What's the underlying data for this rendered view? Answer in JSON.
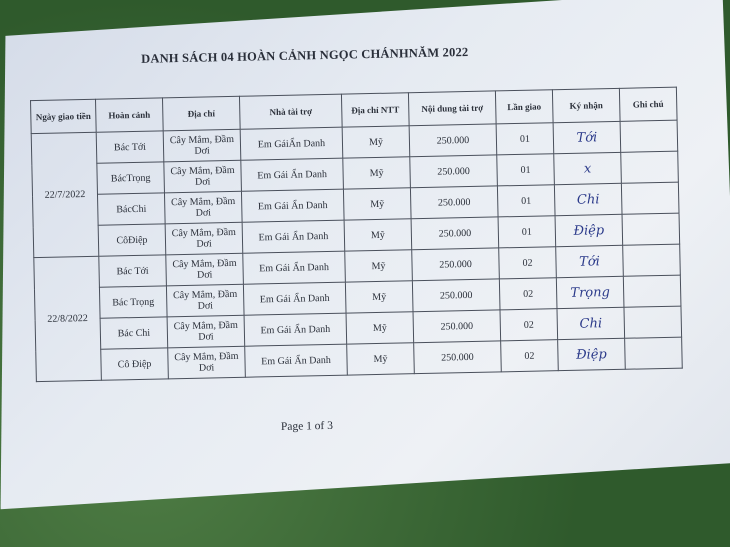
{
  "title": "DANH SÁCH 04 HOÀN CẢNH NGỌC CHÁNHNĂM 2022",
  "headers": [
    "Ngày giao tiền",
    "Hoàn cảnh",
    "Địa chỉ",
    "Nhà tài trợ",
    "Địa chỉ NTT",
    "Nội dung tài trợ",
    "Lần giao",
    "Ký nhận",
    "Ghi chú"
  ],
  "groups": [
    {
      "date": "22/7/2022",
      "rows": [
        {
          "name": "Bác Tới",
          "address": "Cây Mắm, Đầm Dơi",
          "sponsor": "Em GáiẨn Danh",
          "sponsor_addr": "Mỹ",
          "amount": "250.000",
          "round": "01",
          "signature": "Tới",
          "note": ""
        },
        {
          "name": "BácTrọng",
          "address": "Cây Mắm, Đầm Dơi",
          "sponsor": "Em Gái Ẩn Danh",
          "sponsor_addr": "Mỹ",
          "amount": "250.000",
          "round": "01",
          "signature": "x",
          "note": ""
        },
        {
          "name": "BácChi",
          "address": "Cây Mắm, Đầm Dơi",
          "sponsor": "Em Gái Ẩn Danh",
          "sponsor_addr": "Mỹ",
          "amount": "250.000",
          "round": "01",
          "signature": "Chi",
          "note": ""
        },
        {
          "name": "CôĐiệp",
          "address": "Cây Mắm, Đầm Dơi",
          "sponsor": "Em Gái Ẩn Danh",
          "sponsor_addr": "Mỹ",
          "amount": "250.000",
          "round": "01",
          "signature": "Điệp",
          "note": ""
        }
      ]
    },
    {
      "date": "22/8/2022",
      "rows": [
        {
          "name": "Bác Tới",
          "address": "Cây Mắm, Đầm Dơi",
          "sponsor": "Em Gái Ẩn Danh",
          "sponsor_addr": "Mỹ",
          "amount": "250.000",
          "round": "02",
          "signature": "Tới",
          "note": ""
        },
        {
          "name": "Bác Trọng",
          "address": "Cây Mắm, Đầm Dơi",
          "sponsor": "Em Gái Ẩn Danh",
          "sponsor_addr": "Mỹ",
          "amount": "250.000",
          "round": "02",
          "signature": "Trọng",
          "note": ""
        },
        {
          "name": "Bác Chi",
          "address": "Cây Mắm, Đầm Dơi",
          "sponsor": "Em Gái Ẩn Danh",
          "sponsor_addr": "Mỹ",
          "amount": "250.000",
          "round": "02",
          "signature": "Chi",
          "note": ""
        },
        {
          "name": "Cô Điệp",
          "address": "Cây Mắm, Đầm Dơi",
          "sponsor": "Em Gái Ẩn Danh",
          "sponsor_addr": "Mỹ",
          "amount": "250.000",
          "round": "02",
          "signature": "Điệp",
          "note": ""
        }
      ]
    }
  ],
  "footer": "Page 1 of 3"
}
